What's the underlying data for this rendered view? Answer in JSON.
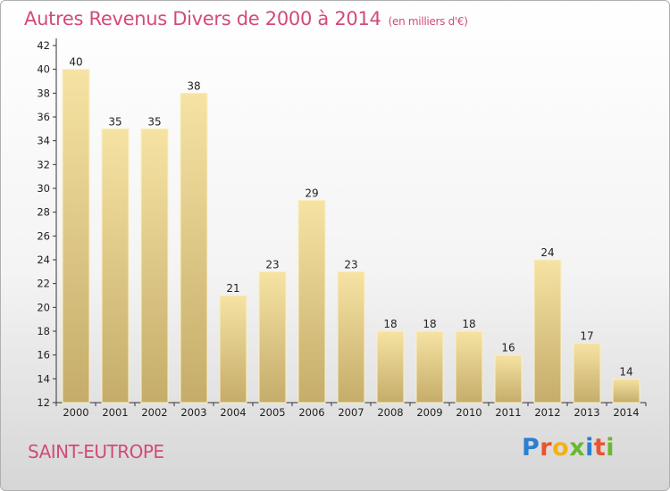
{
  "header": {
    "title": "Autres Revenus Divers de 2000 à 2014",
    "unit": "(en milliers d'€)"
  },
  "footer": {
    "location": "SAINT-EUTROPE",
    "brand": "Proxiti"
  },
  "colors": {
    "title": "#d34a7a",
    "bar_light": "#f6e3a3",
    "bar_dark": "#c5ac6a",
    "brand_letters": [
      "#2a7fd0",
      "#e8542f",
      "#f2b214",
      "#68b830",
      "#2a7fd0",
      "#e8542f",
      "#68b830"
    ]
  },
  "chart_data": {
    "type": "bar",
    "title": "Autres Revenus Divers de 2000 à 2014",
    "xlabel": "",
    "ylabel": "",
    "categories": [
      "2000",
      "2001",
      "2002",
      "2003",
      "2004",
      "2005",
      "2006",
      "2007",
      "2008",
      "2009",
      "2010",
      "2011",
      "2012",
      "2013",
      "2014"
    ],
    "values": [
      40,
      35,
      35,
      38,
      21,
      23,
      29,
      23,
      18,
      18,
      18,
      16,
      24,
      17,
      14
    ],
    "ylim": [
      12,
      42
    ],
    "yticks": [
      12,
      14,
      16,
      18,
      20,
      22,
      24,
      26,
      28,
      30,
      32,
      34,
      36,
      38,
      40,
      42
    ],
    "grid": false,
    "data_labels": true
  }
}
